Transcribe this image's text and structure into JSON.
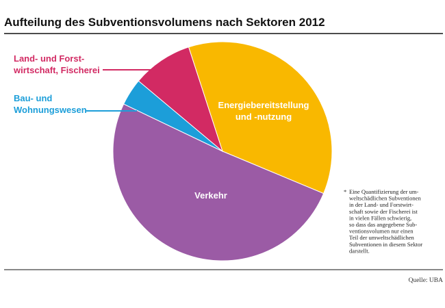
{
  "chart_data": {
    "type": "pie",
    "title": "Aufteilung des Subventionsvolumens nach Sektoren 2012",
    "slices": [
      {
        "key": "energie",
        "label_lines": [
          "Energiebereitstellung",
          "und -nutzung"
        ],
        "value": 36.3,
        "color": "#f9b800",
        "label_color": "#ffffff"
      },
      {
        "key": "verkehr",
        "label_lines": [
          "Verkehr"
        ],
        "value": 50.8,
        "color": "#9b5ba5",
        "label_color": "#ffffff"
      },
      {
        "key": "bau",
        "label_lines": [
          "Bau- und",
          "Wohnungswesen"
        ],
        "value": 4.0,
        "color": "#1c9ed9",
        "label_color": "#1c9ed9"
      },
      {
        "key": "land",
        "label_lines": [
          "Land- und Forst-",
          "wirtschaft, Fischerei"
        ],
        "value": 8.9,
        "color": "#d22a63",
        "label_color": "#d22a63"
      }
    ],
    "footnote_marker": "*",
    "footnote_lines": [
      "Eine Quantifizierung der um-",
      "weltschädlichen Subventionen",
      "in der Land- und Forstwirt-",
      "schaft sowie der Fischerei ist",
      "in vielen Fällen schwierig,",
      "so dass das angegebene Sub-",
      "ventionsvolumen nur einen",
      "Teil der umweltschädlichen",
      "Subventionen in diesem Sektor",
      "darstellt."
    ],
    "source": "Quelle: UBA"
  }
}
